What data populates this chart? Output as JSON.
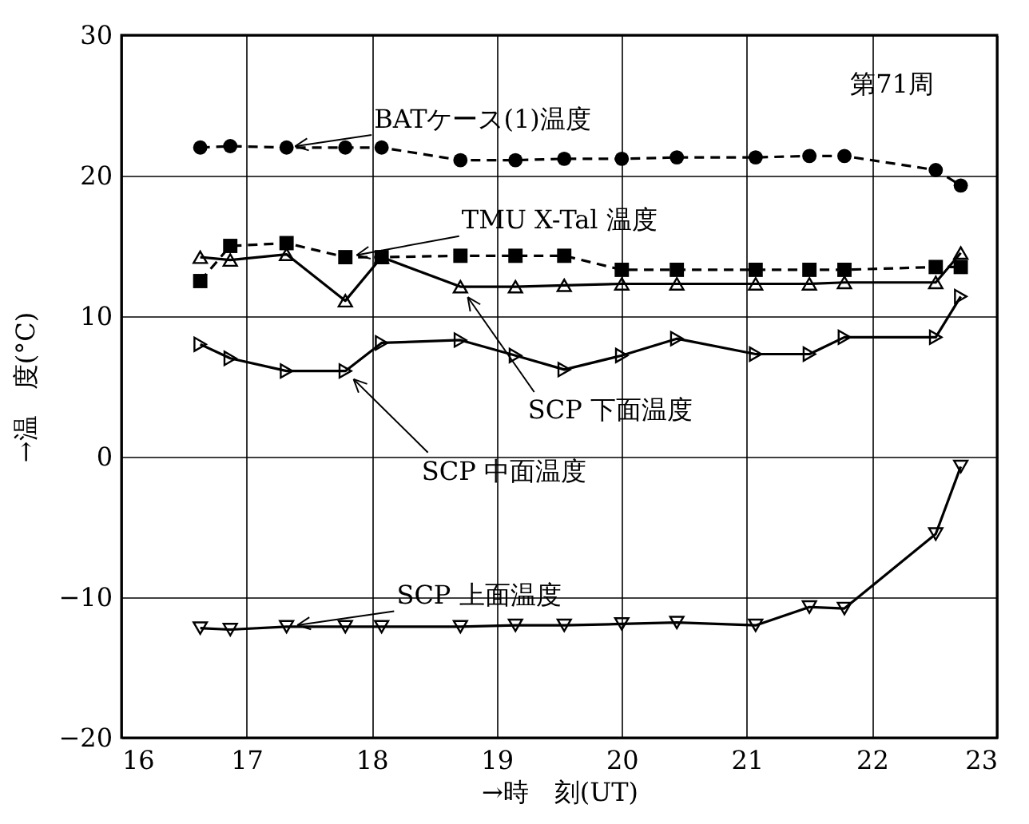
{
  "chart_data": {
    "type": "line",
    "xlabel": "→時　刻(UT)",
    "ylabel": "→温　度(°C)",
    "x": [
      16.63,
      16.87,
      17.32,
      17.79,
      18.08,
      18.71,
      19.15,
      19.54,
      20.0,
      20.44,
      21.07,
      21.5,
      21.78,
      22.51,
      22.71
    ],
    "series": [
      {
        "name": "BATケース(1)温度",
        "color": "#000000",
        "marker": "circle",
        "line_style": "dashed",
        "values": [
          22.0,
          22.1,
          22.0,
          22.0,
          22.0,
          21.1,
          21.1,
          21.2,
          21.2,
          21.3,
          21.3,
          21.4,
          21.4,
          20.4,
          19.3
        ]
      },
      {
        "name": "TMU  X-Tal 温度",
        "color": "#000000",
        "marker": "square",
        "line_style": "dashed",
        "values": [
          12.5,
          15.0,
          15.2,
          14.2,
          14.2,
          14.3,
          14.3,
          14.3,
          13.3,
          13.3,
          13.3,
          13.3,
          13.3,
          13.5,
          13.5
        ]
      },
      {
        "name": "SCP 下面温度",
        "color": "#000000",
        "marker": "triangle-up",
        "line_style": "solid",
        "values": [
          14.2,
          14.0,
          14.4,
          11.1,
          14.2,
          12.1,
          12.1,
          12.2,
          12.3,
          12.3,
          12.3,
          12.3,
          12.4,
          12.4,
          14.5
        ]
      },
      {
        "name": "SCP 中面温度",
        "color": "#000000",
        "marker": "triangle-right",
        "line_style": "solid",
        "values": [
          8.0,
          7.0,
          6.1,
          6.1,
          8.1,
          8.3,
          7.2,
          6.2,
          7.2,
          8.4,
          7.3,
          7.3,
          8.5,
          8.5,
          11.4
        ]
      },
      {
        "name": "SCP 上面温度",
        "color": "#000000",
        "marker": "triangle-down",
        "line_style": "solid",
        "values": [
          -12.2,
          -12.3,
          -12.1,
          -12.1,
          -12.1,
          -12.1,
          -12.0,
          -12.0,
          -11.9,
          -11.8,
          -12.0,
          -10.7,
          -10.8,
          -5.5,
          -0.7
        ]
      }
    ],
    "annotations": [
      "第71周"
    ],
    "xlim": [
      16,
      23
    ],
    "ylim": [
      -20,
      30
    ],
    "xticks": [
      16,
      17,
      18,
      19,
      20,
      21,
      22,
      23
    ],
    "yticks": [
      -20,
      -10,
      0,
      10,
      20,
      30
    ],
    "grid": true
  }
}
